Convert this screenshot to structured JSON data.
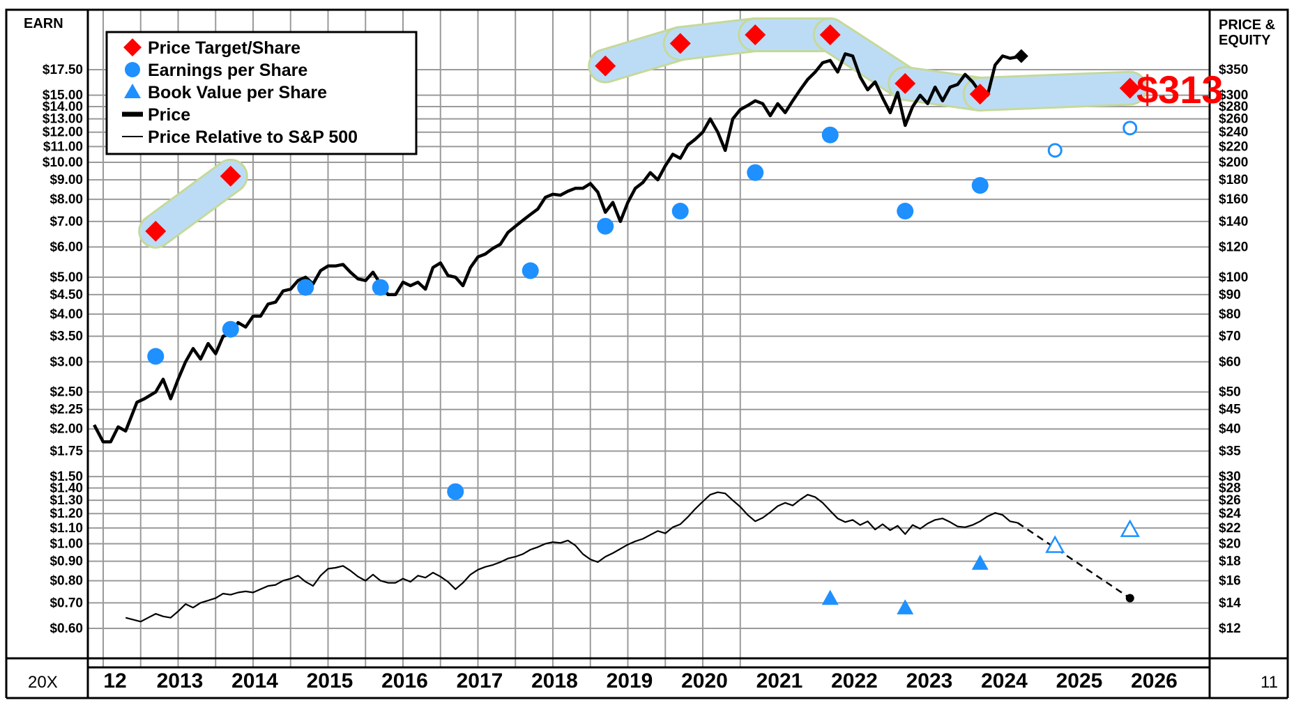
{
  "chart_data": {
    "type": "line",
    "left_axis_title": "EARN",
    "right_axis_title_line1": "PRICE &",
    "right_axis_title_line2": "EQUITY",
    "bottom_left_label": "20X",
    "bottom_right_label": "11",
    "target_label": "$313",
    "earn_ticks": [
      {
        "value": 17.5,
        "label": "$17.50"
      },
      {
        "value": 15,
        "label": "$15.00"
      },
      {
        "value": 14,
        "label": "$14.00"
      },
      {
        "value": 13,
        "label": "$13.00"
      },
      {
        "value": 12,
        "label": "$12.00"
      },
      {
        "value": 11,
        "label": "$11.00"
      },
      {
        "value": 10,
        "label": "$10.00"
      },
      {
        "value": 9,
        "label": "$9.00"
      },
      {
        "value": 8,
        "label": "$8.00"
      },
      {
        "value": 7,
        "label": "$7.00"
      },
      {
        "value": 6,
        "label": "$6.00"
      },
      {
        "value": 5,
        "label": "$5.00"
      },
      {
        "value": 4.5,
        "label": "$4.50"
      },
      {
        "value": 4,
        "label": "$4.00"
      },
      {
        "value": 3.5,
        "label": "$3.50"
      },
      {
        "value": 3,
        "label": "$3.00"
      },
      {
        "value": 2.5,
        "label": "$2.50"
      },
      {
        "value": 2.25,
        "label": "$2.25"
      },
      {
        "value": 2,
        "label": "$2.00"
      },
      {
        "value": 1.75,
        "label": "$1.75"
      },
      {
        "value": 1.5,
        "label": "$1.50"
      },
      {
        "value": 1.4,
        "label": "$1.40"
      },
      {
        "value": 1.3,
        "label": "$1.30"
      },
      {
        "value": 1.2,
        "label": "$1.20"
      },
      {
        "value": 1.1,
        "label": "$1.10"
      },
      {
        "value": 1.0,
        "label": "$1.00"
      },
      {
        "value": 0.9,
        "label": "$0.90"
      },
      {
        "value": 0.8,
        "label": "$0.80"
      },
      {
        "value": 0.7,
        "label": "$0.70"
      },
      {
        "value": 0.6,
        "label": "$0.60"
      }
    ],
    "price_ticks": [
      {
        "value": 350,
        "label": "$350"
      },
      {
        "value": 300,
        "label": "$300"
      },
      {
        "value": 280,
        "label": "$280"
      },
      {
        "value": 260,
        "label": "$260"
      },
      {
        "value": 240,
        "label": "$240"
      },
      {
        "value": 220,
        "label": "$220"
      },
      {
        "value": 200,
        "label": "$200"
      },
      {
        "value": 180,
        "label": "$180"
      },
      {
        "value": 160,
        "label": "$160"
      },
      {
        "value": 140,
        "label": "$140"
      },
      {
        "value": 120,
        "label": "$120"
      },
      {
        "value": 100,
        "label": "$100"
      },
      {
        "value": 90,
        "label": "$90"
      },
      {
        "value": 80,
        "label": "$80"
      },
      {
        "value": 70,
        "label": "$70"
      },
      {
        "value": 60,
        "label": "$60"
      },
      {
        "value": 50,
        "label": "$50"
      },
      {
        "value": 45,
        "label": "$45"
      },
      {
        "value": 40,
        "label": "$40"
      },
      {
        "value": 35,
        "label": "$35"
      },
      {
        "value": 30,
        "label": "$30"
      },
      {
        "value": 28,
        "label": "$28"
      },
      {
        "value": 26,
        "label": "$26"
      },
      {
        "value": 24,
        "label": "$24"
      },
      {
        "value": 22,
        "label": "$22"
      },
      {
        "value": 20,
        "label": "$20"
      },
      {
        "value": 18,
        "label": "$18"
      },
      {
        "value": 16,
        "label": "$16"
      },
      {
        "value": 14,
        "label": "$14"
      },
      {
        "value": 12,
        "label": "$12"
      }
    ],
    "years": [
      "12",
      "2013",
      "2014",
      "2015",
      "2016",
      "2017",
      "2018",
      "2019",
      "2020",
      "2021",
      "2022",
      "2023",
      "2024",
      "2025",
      "2026"
    ],
    "legend": [
      {
        "label": "Price Target/Share",
        "symbol": "diamond",
        "color": "#ff0000"
      },
      {
        "label": "Earnings per Share",
        "symbol": "circle",
        "color": "#1e90ff"
      },
      {
        "label": "Book Value per Share",
        "symbol": "triangle",
        "color": "#1e90ff"
      },
      {
        "label": "Price",
        "symbol": "thick-line",
        "color": "#000000"
      },
      {
        "label": "Price Relative to S&P 500",
        "symbol": "thin-line",
        "color": "#000000"
      }
    ],
    "colors": {
      "target": "#ff0000",
      "eps": "#1e90ff",
      "band": "#bcdcf5",
      "band_edge": "#c5d99a",
      "grid": "#9a9a9a",
      "line": "#000000"
    },
    "price_target": [
      {
        "x": 2012.7,
        "value": 132
      },
      {
        "x": 2013.7,
        "value": 184
      },
      {
        "x": 2018.7,
        "value": 358
      },
      {
        "x": 2019.7,
        "value": 410
      },
      {
        "x": 2020.7,
        "value": 432
      },
      {
        "x": 2021.7,
        "value": 432
      },
      {
        "x": 2022.7,
        "value": 322
      },
      {
        "x": 2023.7,
        "value": 302
      },
      {
        "x": 2025.7,
        "value": 313
      }
    ],
    "target_bands": [
      {
        "x1": 2012.7,
        "v1": 132,
        "x2": 2013.7,
        "v2": 184
      },
      {
        "x1": 2018.7,
        "v1": 358,
        "x2": 2019.7,
        "v2": 410
      },
      {
        "x1": 2019.7,
        "v1": 410,
        "x2": 2020.7,
        "v2": 432
      },
      {
        "x1": 2020.7,
        "v1": 432,
        "x2": 2021.7,
        "v2": 432
      },
      {
        "x1": 2021.7,
        "v1": 432,
        "x2": 2022.7,
        "v2": 322
      },
      {
        "x1": 2022.7,
        "v1": 322,
        "x2": 2023.7,
        "v2": 302
      },
      {
        "x1": 2023.7,
        "v1": 302,
        "x2": 2025.7,
        "v2": 313
      }
    ],
    "eps": [
      {
        "x": 2012.7,
        "value": 3.1,
        "est": false
      },
      {
        "x": 2013.7,
        "value": 3.65,
        "est": false
      },
      {
        "x": 2014.7,
        "value": 4.7,
        "est": false
      },
      {
        "x": 2015.7,
        "value": 4.7,
        "est": false
      },
      {
        "x": 2016.7,
        "value": 1.37,
        "est": false
      },
      {
        "x": 2017.7,
        "value": 5.2,
        "est": false
      },
      {
        "x": 2018.7,
        "value": 6.8,
        "est": false
      },
      {
        "x": 2019.7,
        "value": 7.45,
        "est": false
      },
      {
        "x": 2020.7,
        "value": 9.4,
        "est": false
      },
      {
        "x": 2021.7,
        "value": 11.8,
        "est": false
      },
      {
        "x": 2022.7,
        "value": 7.45,
        "est": false
      },
      {
        "x": 2023.7,
        "value": 8.7,
        "est": false
      },
      {
        "x": 2024.7,
        "value": 10.75,
        "est": true
      },
      {
        "x": 2025.7,
        "value": 12.3,
        "est": true
      }
    ],
    "book_value": [
      {
        "x": 2021.7,
        "value": 14.4,
        "est": false
      },
      {
        "x": 2022.7,
        "value": 13.6,
        "est": false
      },
      {
        "x": 2023.7,
        "value": 17.8,
        "est": false
      },
      {
        "x": 2024.7,
        "value": 19.8,
        "est": true
      },
      {
        "x": 2025.7,
        "value": 21.8,
        "est": true
      }
    ],
    "price": [
      [
        2011.88,
        41
      ],
      [
        2012.0,
        37
      ],
      [
        2012.1,
        37
      ],
      [
        2012.2,
        40.5
      ],
      [
        2012.3,
        39.5
      ],
      [
        2012.45,
        47
      ],
      [
        2012.55,
        48
      ],
      [
        2012.7,
        50
      ],
      [
        2012.8,
        54
      ],
      [
        2012.9,
        48
      ],
      [
        2013.0,
        54
      ],
      [
        2013.1,
        60
      ],
      [
        2013.2,
        65
      ],
      [
        2013.3,
        61
      ],
      [
        2013.4,
        67
      ],
      [
        2013.5,
        63
      ],
      [
        2013.6,
        70
      ],
      [
        2013.7,
        71
      ],
      [
        2013.8,
        76
      ],
      [
        2013.9,
        74
      ],
      [
        2014.0,
        79
      ],
      [
        2014.1,
        79
      ],
      [
        2014.2,
        85
      ],
      [
        2014.3,
        86
      ],
      [
        2014.4,
        92
      ],
      [
        2014.5,
        93
      ],
      [
        2014.6,
        98
      ],
      [
        2014.7,
        100
      ],
      [
        2014.8,
        96
      ],
      [
        2014.9,
        104
      ],
      [
        2015.0,
        107
      ],
      [
        2015.1,
        107
      ],
      [
        2015.2,
        108
      ],
      [
        2015.3,
        103
      ],
      [
        2015.4,
        99
      ],
      [
        2015.5,
        98
      ],
      [
        2015.6,
        103
      ],
      [
        2015.7,
        96
      ],
      [
        2015.8,
        90
      ],
      [
        2015.9,
        90
      ],
      [
        2016.0,
        97
      ],
      [
        2016.1,
        95
      ],
      [
        2016.2,
        97
      ],
      [
        2016.3,
        93
      ],
      [
        2016.4,
        106
      ],
      [
        2016.5,
        109
      ],
      [
        2016.6,
        101
      ],
      [
        2016.7,
        100
      ],
      [
        2016.8,
        95
      ],
      [
        2016.9,
        106
      ],
      [
        2017.0,
        113
      ],
      [
        2017.1,
        115
      ],
      [
        2017.2,
        119
      ],
      [
        2017.3,
        122
      ],
      [
        2017.4,
        131
      ],
      [
        2017.5,
        136
      ],
      [
        2017.6,
        141
      ],
      [
        2017.7,
        146
      ],
      [
        2017.8,
        151
      ],
      [
        2017.9,
        162
      ],
      [
        2018.0,
        165
      ],
      [
        2018.1,
        164
      ],
      [
        2018.2,
        168
      ],
      [
        2018.3,
        171
      ],
      [
        2018.4,
        171
      ],
      [
        2018.5,
        176
      ],
      [
        2018.6,
        167
      ],
      [
        2018.7,
        148
      ],
      [
        2018.8,
        157
      ],
      [
        2018.9,
        140
      ],
      [
        2019.0,
        157
      ],
      [
        2019.1,
        171
      ],
      [
        2019.2,
        177
      ],
      [
        2019.3,
        188
      ],
      [
        2019.4,
        180
      ],
      [
        2019.5,
        196
      ],
      [
        2019.6,
        210
      ],
      [
        2019.7,
        205
      ],
      [
        2019.8,
        222
      ],
      [
        2019.9,
        230
      ],
      [
        2020.0,
        240
      ],
      [
        2020.1,
        260
      ],
      [
        2020.2,
        240
      ],
      [
        2020.3,
        215
      ],
      [
        2020.4,
        260
      ],
      [
        2020.5,
        275
      ],
      [
        2020.6,
        282
      ],
      [
        2020.7,
        290
      ],
      [
        2020.8,
        285
      ],
      [
        2020.9,
        265
      ],
      [
        2021.0,
        285
      ],
      [
        2021.1,
        270
      ],
      [
        2021.2,
        290
      ],
      [
        2021.3,
        310
      ],
      [
        2021.4,
        330
      ],
      [
        2021.5,
        345
      ],
      [
        2021.6,
        365
      ],
      [
        2021.7,
        370
      ],
      [
        2021.8,
        345
      ],
      [
        2021.9,
        385
      ],
      [
        2022.0,
        380
      ],
      [
        2022.1,
        335
      ],
      [
        2022.2,
        310
      ],
      [
        2022.3,
        325
      ],
      [
        2022.4,
        295
      ],
      [
        2022.5,
        270
      ],
      [
        2022.6,
        305
      ],
      [
        2022.7,
        250
      ],
      [
        2022.8,
        280
      ],
      [
        2022.9,
        300
      ],
      [
        2023.0,
        285
      ],
      [
        2023.1,
        315
      ],
      [
        2023.2,
        290
      ],
      [
        2023.3,
        315
      ],
      [
        2023.4,
        320
      ],
      [
        2023.5,
        340
      ],
      [
        2023.6,
        325
      ],
      [
        2023.7,
        305
      ],
      [
        2023.8,
        300
      ],
      [
        2023.9,
        360
      ],
      [
        2024.0,
        380
      ],
      [
        2024.1,
        375
      ],
      [
        2024.2,
        378
      ]
    ],
    "price_current": {
      "x": 2024.25,
      "value": 380
    },
    "relative": [
      [
        2012.3,
        12.8
      ],
      [
        2012.5,
        12.5
      ],
      [
        2012.6,
        12.8
      ],
      [
        2012.7,
        13.1
      ],
      [
        2012.8,
        12.9
      ],
      [
        2012.9,
        12.8
      ],
      [
        2013.0,
        13.3
      ],
      [
        2013.1,
        13.9
      ],
      [
        2013.2,
        13.6
      ],
      [
        2013.3,
        14.0
      ],
      [
        2013.4,
        14.2
      ],
      [
        2013.5,
        14.4
      ],
      [
        2013.6,
        14.8
      ],
      [
        2013.7,
        14.7
      ],
      [
        2013.8,
        14.9
      ],
      [
        2013.9,
        15.0
      ],
      [
        2014.0,
        14.9
      ],
      [
        2014.1,
        15.2
      ],
      [
        2014.2,
        15.5
      ],
      [
        2014.3,
        15.6
      ],
      [
        2014.4,
        16.0
      ],
      [
        2014.5,
        16.2
      ],
      [
        2014.6,
        16.5
      ],
      [
        2014.7,
        15.9
      ],
      [
        2014.8,
        15.5
      ],
      [
        2014.9,
        16.5
      ],
      [
        2015.0,
        17.2
      ],
      [
        2015.1,
        17.3
      ],
      [
        2015.2,
        17.5
      ],
      [
        2015.3,
        17.0
      ],
      [
        2015.4,
        16.4
      ],
      [
        2015.5,
        16.0
      ],
      [
        2015.6,
        16.6
      ],
      [
        2015.7,
        16.0
      ],
      [
        2015.8,
        15.8
      ],
      [
        2015.9,
        15.8
      ],
      [
        2016.0,
        16.2
      ],
      [
        2016.1,
        15.9
      ],
      [
        2016.2,
        16.5
      ],
      [
        2016.3,
        16.3
      ],
      [
        2016.4,
        16.8
      ],
      [
        2016.5,
        16.4
      ],
      [
        2016.6,
        15.9
      ],
      [
        2016.7,
        15.2
      ],
      [
        2016.8,
        15.8
      ],
      [
        2016.9,
        16.6
      ],
      [
        2017.0,
        17.1
      ],
      [
        2017.1,
        17.4
      ],
      [
        2017.2,
        17.6
      ],
      [
        2017.3,
        17.9
      ],
      [
        2017.4,
        18.3
      ],
      [
        2017.5,
        18.5
      ],
      [
        2017.6,
        18.8
      ],
      [
        2017.7,
        19.3
      ],
      [
        2017.8,
        19.6
      ],
      [
        2017.9,
        20.0
      ],
      [
        2018.0,
        20.2
      ],
      [
        2018.1,
        20.1
      ],
      [
        2018.2,
        20.4
      ],
      [
        2018.3,
        19.8
      ],
      [
        2018.4,
        18.8
      ],
      [
        2018.5,
        18.2
      ],
      [
        2018.6,
        17.9
      ],
      [
        2018.7,
        18.5
      ],
      [
        2018.8,
        18.9
      ],
      [
        2018.9,
        19.4
      ],
      [
        2019.0,
        19.9
      ],
      [
        2019.1,
        20.3
      ],
      [
        2019.2,
        20.6
      ],
      [
        2019.3,
        21.1
      ],
      [
        2019.4,
        21.6
      ],
      [
        2019.5,
        21.3
      ],
      [
        2019.6,
        22.1
      ],
      [
        2019.7,
        22.5
      ],
      [
        2019.8,
        23.5
      ],
      [
        2019.9,
        24.7
      ],
      [
        2020.0,
        25.8
      ],
      [
        2020.1,
        26.9
      ],
      [
        2020.2,
        27.3
      ],
      [
        2020.3,
        27.1
      ],
      [
        2020.4,
        26.0
      ],
      [
        2020.5,
        25.0
      ],
      [
        2020.6,
        23.8
      ],
      [
        2020.7,
        22.9
      ],
      [
        2020.8,
        23.4
      ],
      [
        2020.9,
        24.2
      ],
      [
        2021.0,
        25.1
      ],
      [
        2021.1,
        25.6
      ],
      [
        2021.2,
        25.2
      ],
      [
        2021.3,
        26.1
      ],
      [
        2021.4,
        26.9
      ],
      [
        2021.5,
        26.5
      ],
      [
        2021.6,
        25.6
      ],
      [
        2021.7,
        24.4
      ],
      [
        2021.8,
        23.3
      ],
      [
        2021.9,
        22.8
      ],
      [
        2022.0,
        23.1
      ],
      [
        2022.1,
        22.4
      ],
      [
        2022.2,
        22.9
      ],
      [
        2022.3,
        21.8
      ],
      [
        2022.4,
        22.5
      ],
      [
        2022.5,
        21.7
      ],
      [
        2022.6,
        22.3
      ],
      [
        2022.7,
        21.2
      ],
      [
        2022.8,
        22.4
      ],
      [
        2022.9,
        21.9
      ],
      [
        2023.0,
        22.6
      ],
      [
        2023.1,
        23.1
      ],
      [
        2023.2,
        23.3
      ],
      [
        2023.3,
        22.8
      ],
      [
        2023.4,
        22.2
      ],
      [
        2023.5,
        22.1
      ],
      [
        2023.6,
        22.4
      ],
      [
        2023.7,
        22.9
      ],
      [
        2023.8,
        23.6
      ],
      [
        2023.9,
        24.1
      ],
      [
        2024.0,
        23.8
      ],
      [
        2024.1,
        22.9
      ],
      [
        2024.2,
        22.7
      ]
    ],
    "relative_projection": [
      [
        2024.2,
        22.7
      ],
      [
        2025.7,
        14.4
      ]
    ],
    "relative_projection_end": {
      "x": 2025.7,
      "value": 14.4
    }
  }
}
